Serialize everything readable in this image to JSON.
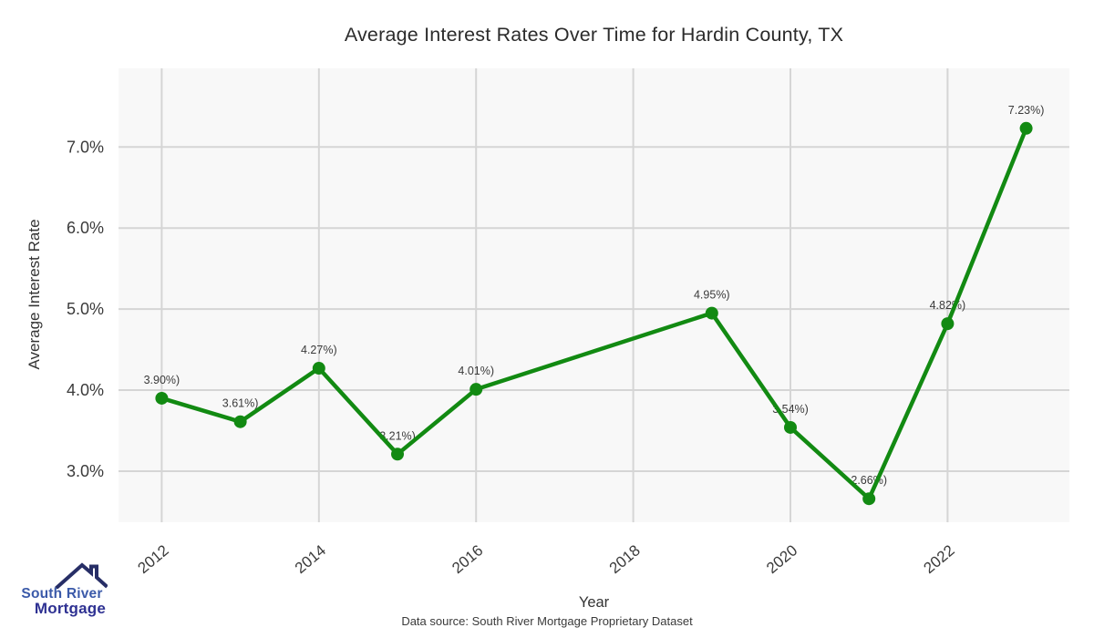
{
  "chart_data": {
    "type": "line",
    "title": "Average Interest Rates Over Time for Hardin County, TX",
    "xlabel": "Year",
    "ylabel": "Average Interest Rate",
    "x": [
      2012,
      2013,
      2014,
      2015,
      2016,
      2019,
      2020,
      2021,
      2022,
      2023
    ],
    "y": [
      3.9,
      3.61,
      4.27,
      3.21,
      4.01,
      4.95,
      3.54,
      2.66,
      4.82,
      7.23
    ],
    "point_labels": [
      "3.90%)",
      "3.61%)",
      "4.27%)",
      "3.21%)",
      "4.01%)",
      "4.95%)",
      "3.54%)",
      "2.66%)",
      "4.82%)",
      "7.23%)"
    ],
    "xticks": {
      "values": [
        2012,
        2014,
        2016,
        2018,
        2020,
        2022
      ],
      "labels": [
        "2012",
        "2014",
        "2016",
        "2018",
        "2020",
        "2022"
      ]
    },
    "yticks": {
      "values": [
        3,
        4,
        5,
        6,
        7
      ],
      "labels": [
        "3.0%",
        "4.0%",
        "5.0%",
        "6.0%",
        "7.0%"
      ]
    },
    "xlim": [
      2011.45,
      2023.55
    ],
    "ylim": [
      2.37,
      7.97
    ],
    "grid": true,
    "legend_position": "none"
  },
  "colors": {
    "line": "#128a12",
    "point": "#128a12",
    "plot_bg": "#f8f8f8",
    "grid": "#d5d5d5",
    "tick_text": "#3b3b3b",
    "label_text": "#3a3a3a",
    "title_text": "#2b2b2b",
    "logo_primary": "#3b5aa9",
    "logo_secondary": "#2e3192",
    "logo_roof": "#272e66"
  },
  "footer": {
    "data_source": "Data source: South River Mortgage Proprietary Dataset"
  },
  "logo": {
    "line1": "South River",
    "line2": "Mortgage"
  }
}
